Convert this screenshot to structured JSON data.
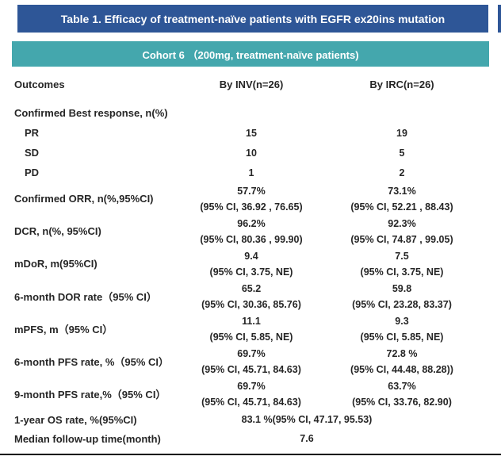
{
  "title": "Table 1. Efficacy of treatment-naïve patients with EGFR ex20ins mutation",
  "cohort_header": "Cohort 6 （200mg, treatment-naïve patients)",
  "columns": {
    "outcomes": "Outcomes",
    "inv": "By INV(n=26)",
    "irc": "By IRC(n=26)"
  },
  "colors": {
    "title_bg": "#2E5697",
    "cohort_bg": "#44A7AD",
    "text": "#262626",
    "bottom_rule": "#000000"
  },
  "rows": [
    {
      "type": "section",
      "label": "Confirmed Best response, n(%)"
    },
    {
      "type": "value",
      "label": "PR",
      "inv": "15",
      "irc": "19"
    },
    {
      "type": "value",
      "label": "SD",
      "inv": "10",
      "irc": "5"
    },
    {
      "type": "value",
      "label": "PD",
      "inv": "1",
      "irc": "2"
    },
    {
      "type": "double",
      "label": "Confirmed ORR, n(%,95%CI)",
      "inv": "57.7%",
      "inv_ci": "(95% CI, 36.92 , 76.65)",
      "irc": "73.1%",
      "irc_ci": "(95% CI, 52.21 , 88.43)"
    },
    {
      "type": "double",
      "label": "DCR, n(%, 95%CI)",
      "inv": "96.2%",
      "inv_ci": "(95% CI, 80.36 , 99.90)",
      "irc": "92.3%",
      "irc_ci": "(95% CI, 74.87 , 99.05)"
    },
    {
      "type": "double",
      "label": "mDoR, m(95%CI)",
      "inv": "9.4",
      "inv_ci": "(95% CI, 3.75, NE)",
      "irc": "7.5",
      "irc_ci": "(95% CI, 3.75, NE)"
    },
    {
      "type": "double",
      "label": "6-month DOR rate（95% CI）",
      "inv": "65.2",
      "inv_ci": "(95% CI, 30.36, 85.76)",
      "irc": "59.8",
      "irc_ci": "(95% CI, 23.28, 83.37)"
    },
    {
      "type": "double",
      "label": "mPFS, m（95% CI）",
      "inv": "11.1",
      "inv_ci": "(95% CI, 5.85, NE)",
      "irc": "9.3",
      "irc_ci": "(95% CI, 5.85, NE)"
    },
    {
      "type": "double",
      "label": "6-month PFS rate, %（95% CI）",
      "inv": "69.7%",
      "inv_ci": "(95% CI, 45.71, 84.63)",
      "irc": "72.8 %",
      "irc_ci": "(95% CI, 44.48, 88.28))"
    },
    {
      "type": "double",
      "label": "9-month PFS rate,%（95% CI）",
      "inv": "69.7%",
      "inv_ci": "(95% CI, 45.71, 84.63)",
      "irc": "63.7%",
      "irc_ci": "(95% CI, 33.76, 82.90)"
    },
    {
      "type": "span",
      "label": "1-year OS rate, %(95%CI)",
      "value": "83.1 %(95% CI, 47.17, 95.53)"
    },
    {
      "type": "span",
      "label": "Median follow-up time(month)",
      "value": "7.6"
    }
  ]
}
